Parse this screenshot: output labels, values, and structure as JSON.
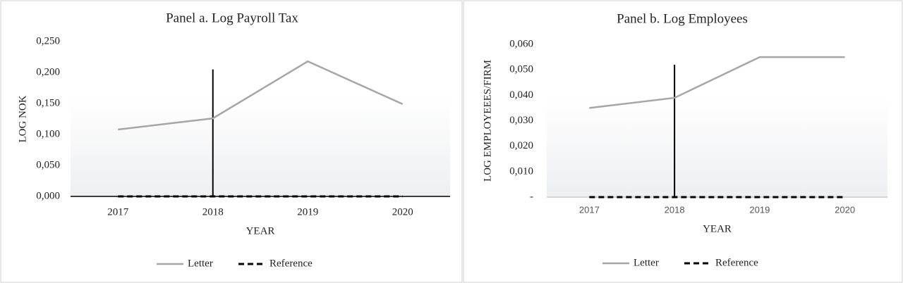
{
  "chart_data": [
    {
      "type": "line",
      "title": "Panel a. Log Payroll Tax",
      "x_label": "YEAR",
      "y_label": "LOG NOK",
      "categories": [
        "2017",
        "2018",
        "2019",
        "2020"
      ],
      "series": [
        {
          "name": "Letter",
          "color": "#a6a6a6",
          "values": [
            0.108,
            0.126,
            0.218,
            0.149
          ]
        },
        {
          "name": "Reference",
          "color": "#000000",
          "dashed": true,
          "values": [
            0,
            0,
            0,
            0
          ]
        }
      ],
      "ylim": [
        0,
        0.25
      ],
      "yticks": [
        {
          "value": 0,
          "label": "0,000"
        },
        {
          "value": 0.05,
          "label": "0,050"
        },
        {
          "value": 0.1,
          "label": "0,100"
        },
        {
          "value": 0.15,
          "label": "0,150"
        },
        {
          "value": 0.2,
          "label": "0,200"
        },
        {
          "value": 0.25,
          "label": "0,250"
        }
      ],
      "vline": {
        "x": "2018",
        "top": 0.205
      },
      "legend": "bottom"
    },
    {
      "type": "line",
      "title": "Panel b. Log Employees",
      "x_label": "YEAR",
      "y_label": "LOG EMPLOYEEES/FIRM",
      "categories": [
        "2017",
        "2018",
        "2019",
        "2020"
      ],
      "series": [
        {
          "name": "Letter",
          "color": "#a6a6a6",
          "values": [
            0.035,
            0.039,
            0.055,
            0.055
          ]
        },
        {
          "name": "Reference",
          "color": "#000000",
          "dashed": true,
          "values": [
            0,
            0,
            0,
            0
          ]
        }
      ],
      "ylim": [
        0,
        0.06
      ],
      "yticks": [
        {
          "value": 0,
          "label": "-"
        },
        {
          "value": 0.01,
          "label": "0,010"
        },
        {
          "value": 0.02,
          "label": "0,020"
        },
        {
          "value": 0.03,
          "label": "0,030"
        },
        {
          "value": 0.04,
          "label": "0,040"
        },
        {
          "value": 0.05,
          "label": "0,050"
        },
        {
          "value": 0.06,
          "label": "0,060"
        }
      ],
      "vline": {
        "x": "2018",
        "top": 0.052
      },
      "legend": "bottom"
    }
  ]
}
